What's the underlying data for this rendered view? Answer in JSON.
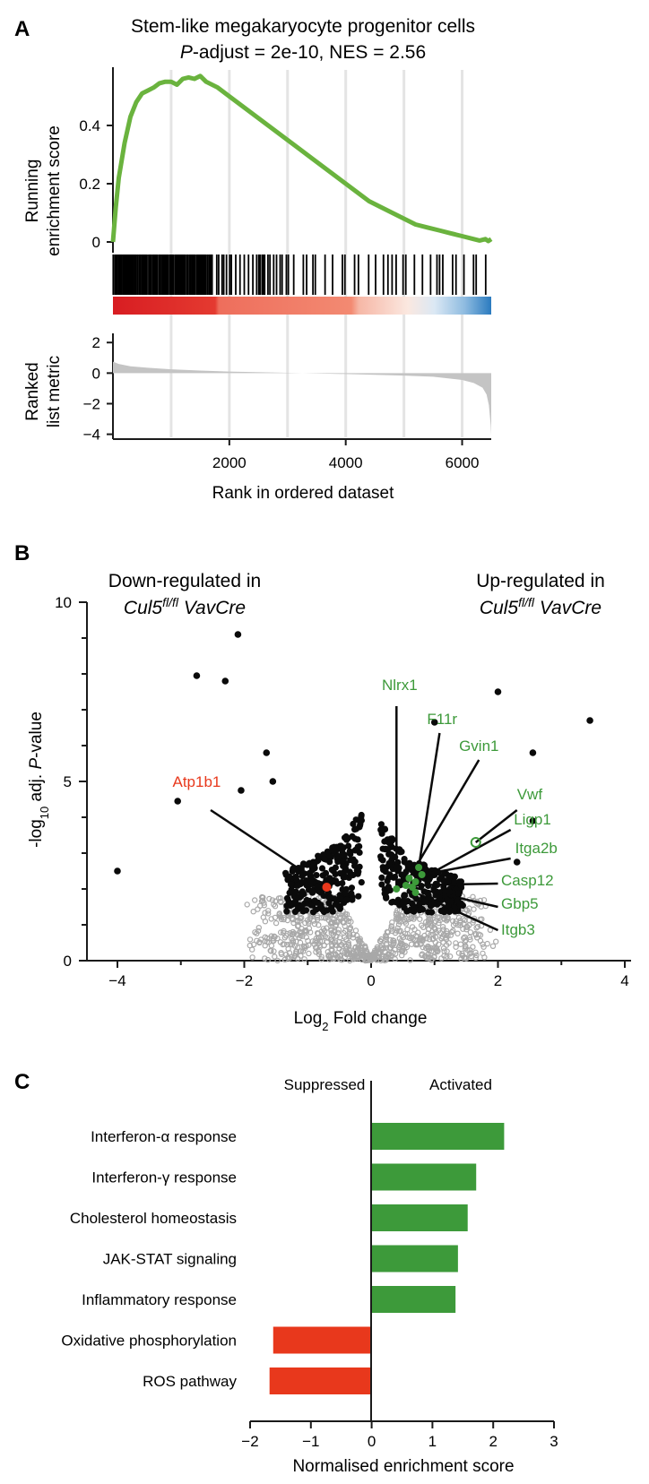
{
  "panels": {
    "a": {
      "letter": "A",
      "title_line1": "Stem-like megakaryocyte progenitor cells",
      "title_line2_prefix": "P",
      "title_line2_rest": "-adjust = 2e-10, NES = 2.56",
      "ylabel_top_line1": "Running",
      "ylabel_top_line2": "enrichment score",
      "ylabel_bottom_line1": "Ranked",
      "ylabel_bottom_line2": "list metric",
      "xlabel": "Rank in ordered dataset"
    },
    "b": {
      "letter": "B",
      "down_line1": "Down-regulated in",
      "up_line1": "Up-regulated in",
      "genotype_base": "Cul5",
      "genotype_sup": "fl/fl",
      "genotype_driver": " VavCre",
      "ylabel_prefix": "-log",
      "ylabel_sub": "10",
      "ylabel_rest": " adj. ",
      "ylabel_p": "P",
      "ylabel_end": "-value",
      "xlabel_prefix": "Log",
      "xlabel_sub": "2",
      "xlabel_rest": " Fold change"
    },
    "c": {
      "letter": "C",
      "suppressed": "Suppressed",
      "activated": "Activated",
      "xlabel": "Normalised enrichment score"
    }
  },
  "colors": {
    "green_curve": "#6ab33e",
    "green_bar": "#3d9a3a",
    "red_bar": "#e8381c",
    "gene_green": "#3d9a3a",
    "gene_red": "#e8381c",
    "grey_points": "#a8a8a8",
    "metric_fill": "#c4c4c4",
    "rank_grid": "#e4e4e4"
  },
  "chart_data": [
    {
      "type": "line",
      "name": "gsea_running_enrichment",
      "xlim": [
        0,
        6500
      ],
      "ylim": [
        0,
        0.6
      ],
      "yticks": [
        0,
        0.2,
        0.4
      ],
      "xticks": [
        2000,
        4000,
        6000
      ],
      "x": [
        0,
        50,
        100,
        200,
        300,
        400,
        500,
        600,
        700,
        800,
        900,
        1000,
        1100,
        1200,
        1300,
        1400,
        1500,
        1600,
        1800,
        2000,
        2200,
        2400,
        2600,
        2800,
        3000,
        3200,
        3400,
        3600,
        3800,
        4000,
        4200,
        4400,
        4600,
        4800,
        5000,
        5200,
        5400,
        5600,
        5800,
        6000,
        6200,
        6300,
        6400,
        6450,
        6500
      ],
      "y": [
        0,
        0.12,
        0.22,
        0.34,
        0.43,
        0.48,
        0.51,
        0.52,
        0.53,
        0.545,
        0.55,
        0.55,
        0.54,
        0.56,
        0.565,
        0.56,
        0.57,
        0.55,
        0.53,
        0.5,
        0.47,
        0.44,
        0.41,
        0.38,
        0.35,
        0.32,
        0.29,
        0.26,
        0.23,
        0.2,
        0.17,
        0.14,
        0.12,
        0.1,
        0.08,
        0.06,
        0.05,
        0.04,
        0.03,
        0.02,
        0.01,
        0.005,
        0.01,
        0.003,
        0.01
      ]
    },
    {
      "type": "area",
      "name": "ranked_list_metric",
      "xlim": [
        0,
        6500
      ],
      "ylim": [
        -4.2,
        2.6
      ],
      "yticks": [
        2,
        0,
        -2,
        -4
      ],
      "xticks": [
        2000,
        4000,
        6000
      ],
      "x": [
        0,
        100,
        300,
        600,
        1000,
        1500,
        2000,
        3000,
        4000,
        5000,
        5500,
        6000,
        6200,
        6350,
        6420,
        6460,
        6490,
        6500
      ],
      "y": [
        0.75,
        0.6,
        0.45,
        0.35,
        0.25,
        0.17,
        0.1,
        0.02,
        -0.06,
        -0.16,
        -0.24,
        -0.45,
        -0.65,
        -0.95,
        -1.4,
        -2.1,
        -3.4,
        -4.1
      ]
    },
    {
      "type": "scatter",
      "name": "volcano",
      "xlim": [
        -4.5,
        4.0
      ],
      "ylim": [
        0,
        10.0
      ],
      "xticks": [
        -4,
        -2,
        0,
        2,
        4
      ],
      "yticks": [
        0,
        5,
        10
      ],
      "labeled_genes": [
        {
          "name": "Nlrx1",
          "x": 0.4,
          "y": 2.0,
          "group": "up"
        },
        {
          "name": "F11r",
          "x": 0.75,
          "y": 2.6,
          "group": "up"
        },
        {
          "name": "Gvin1",
          "x": 0.6,
          "y": 2.3,
          "group": "up"
        },
        {
          "name": "Vwf",
          "x": 1.65,
          "y": 3.3,
          "group": "up"
        },
        {
          "name": "Ligp1",
          "x": 0.7,
          "y": 2.2,
          "group": "up"
        },
        {
          "name": "Itga2b",
          "x": 0.8,
          "y": 2.4,
          "group": "up"
        },
        {
          "name": "Casp12",
          "x": 0.55,
          "y": 2.1,
          "group": "up"
        },
        {
          "name": "Gbp5",
          "x": 0.65,
          "y": 2.05,
          "group": "up"
        },
        {
          "name": "Itgb3",
          "x": 0.7,
          "y": 1.9,
          "group": "up"
        },
        {
          "name": "Atp1b1",
          "x": -0.7,
          "y": 2.05,
          "group": "down"
        }
      ],
      "significant_outliers": [
        {
          "x": -2.1,
          "y": 9.1
        },
        {
          "x": -2.75,
          "y": 7.95
        },
        {
          "x": -2.3,
          "y": 7.8
        },
        {
          "x": -3.05,
          "y": 4.45
        },
        {
          "x": -4.0,
          "y": 2.5
        },
        {
          "x": -2.05,
          "y": 4.75
        },
        {
          "x": -1.65,
          "y": 5.8
        },
        {
          "x": -1.55,
          "y": 5.0
        },
        {
          "x": 2.0,
          "y": 7.5
        },
        {
          "x": 3.45,
          "y": 6.7
        },
        {
          "x": 2.55,
          "y": 5.8
        },
        {
          "x": 1.0,
          "y": 6.65
        },
        {
          "x": 2.55,
          "y": 3.9
        },
        {
          "x": 2.3,
          "y": 2.75
        }
      ]
    },
    {
      "type": "bar",
      "name": "hallmark_nes",
      "orientation": "horizontal",
      "xlim": [
        -2,
        3
      ],
      "xticks": [
        -2,
        -1,
        0,
        1,
        2,
        3
      ],
      "categories": [
        "Interferon-α response",
        "Interferon-γ response",
        "Cholesterol homeostasis",
        "JAK-STAT signaling",
        "Inflammatory response",
        "Oxidative phosphorylation",
        "ROS pathway"
      ],
      "values": [
        2.18,
        1.72,
        1.58,
        1.42,
        1.38,
        -1.62,
        -1.68
      ]
    }
  ]
}
